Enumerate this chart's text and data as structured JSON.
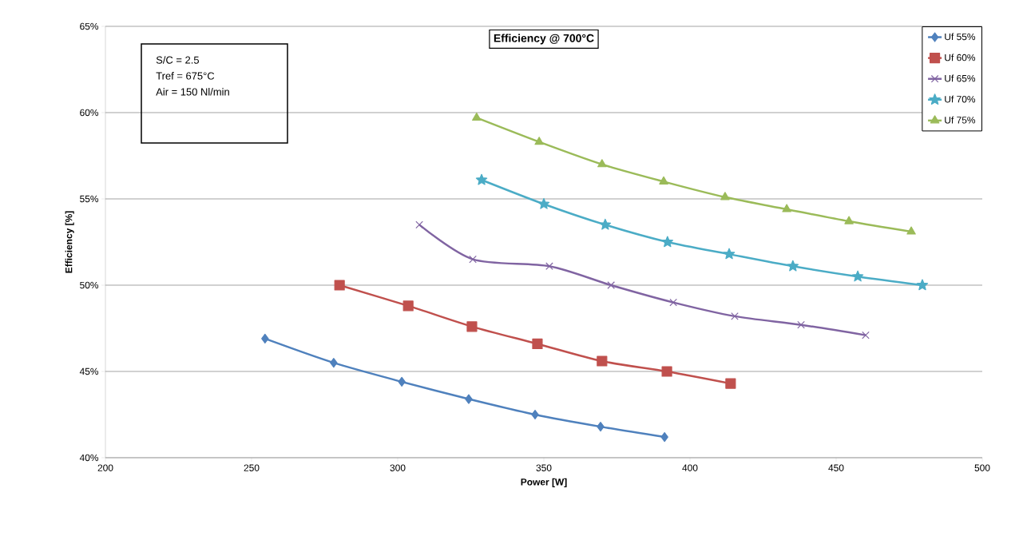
{
  "chart_data": {
    "type": "line",
    "title": "Efficiency @ 700°C",
    "xlabel": "Power [W]",
    "ylabel": "Efficiency [%]",
    "annotations": [
      "S/C = 2.5",
      "Tref = 675°C",
      "Air = 150 Nl/min"
    ],
    "xlim": [
      200,
      500
    ],
    "xticks": [
      200,
      250,
      300,
      350,
      400,
      450,
      500
    ],
    "ylim": [
      40,
      65
    ],
    "yticks": [
      {
        "value": 40,
        "label": "40%"
      },
      {
        "value": 45,
        "label": "45%"
      },
      {
        "value": 50,
        "label": "50%"
      },
      {
        "value": 55,
        "label": "55%"
      },
      {
        "value": 60,
        "label": "60%"
      },
      {
        "value": 65,
        "label": "65%"
      }
    ],
    "grid": "y",
    "legend": "top right",
    "series": [
      {
        "name": "Uf 55%",
        "color": "#4f81bd",
        "marker": "diamond",
        "x": [
          254.6,
          278.1,
          301.4,
          324.3,
          347.0,
          369.4,
          391.3
        ],
        "values": [
          46.9,
          45.5,
          44.4,
          43.4,
          42.5,
          41.8,
          41.2
        ]
      },
      {
        "name": "Uf 60%",
        "color": "#c0504d",
        "marker": "square",
        "x": [
          280.1,
          303.6,
          325.4,
          347.8,
          369.9,
          392.1,
          413.9
        ],
        "values": [
          50.0,
          48.8,
          47.6,
          46.6,
          45.6,
          45.0,
          44.3
        ]
      },
      {
        "name": "Uf 65%",
        "color": "#8064a2",
        "marker": "cross",
        "x": [
          307.4,
          325.7,
          351.9,
          373.0,
          394.3,
          415.3,
          438.0,
          460.1
        ],
        "values": [
          53.5,
          51.5,
          51.1,
          50.0,
          49.0,
          48.2,
          47.7,
          47.1
        ]
      },
      {
        "name": "Uf 70%",
        "color": "#4bacc6",
        "marker": "star",
        "x": [
          328.7,
          350.0,
          371.0,
          392.3,
          413.4,
          435.2,
          457.4,
          479.5
        ],
        "values": [
          56.1,
          54.7,
          53.5,
          52.5,
          51.8,
          51.1,
          50.5,
          50.0
        ]
      },
      {
        "name": "Uf 75%",
        "color": "#9bbb59",
        "marker": "triangle",
        "x": [
          327.0,
          348.4,
          369.9,
          391.0,
          412.0,
          433.1,
          454.4,
          475.7
        ],
        "values": [
          59.7,
          58.3,
          57.0,
          56.0,
          55.1,
          54.4,
          53.7,
          53.1
        ]
      }
    ]
  }
}
